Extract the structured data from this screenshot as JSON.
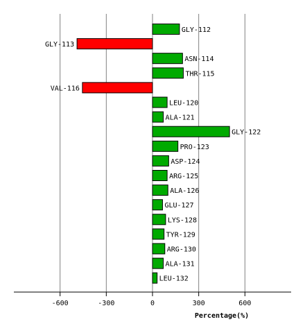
{
  "chart_data": {
    "type": "bar",
    "orientation": "horizontal",
    "categories": [
      "GLY-112",
      "GLY-113",
      "ASN-114",
      "THR-115",
      "VAL-116",
      "LEU-120",
      "ALA-121",
      "GLY-122",
      "PRO-123",
      "ASP-124",
      "ARG-125",
      "ALA-126",
      "GLU-127",
      "LYS-128",
      "TYR-129",
      "ARG-130",
      "ALA-131",
      "LEU-132"
    ],
    "values": [
      175,
      -490,
      195,
      200,
      -455,
      95,
      70,
      500,
      165,
      105,
      95,
      100,
      65,
      85,
      75,
      80,
      70,
      30
    ],
    "xlabel": "Percentage(%)",
    "xticks": [
      -600,
      -300,
      0,
      300,
      600
    ],
    "xlim": [
      -900,
      900
    ],
    "grid": "vertical",
    "colors": {
      "positive": "#00aa00",
      "negative": "#ff0000",
      "edge": "#000000",
      "grid": "#808080"
    }
  }
}
